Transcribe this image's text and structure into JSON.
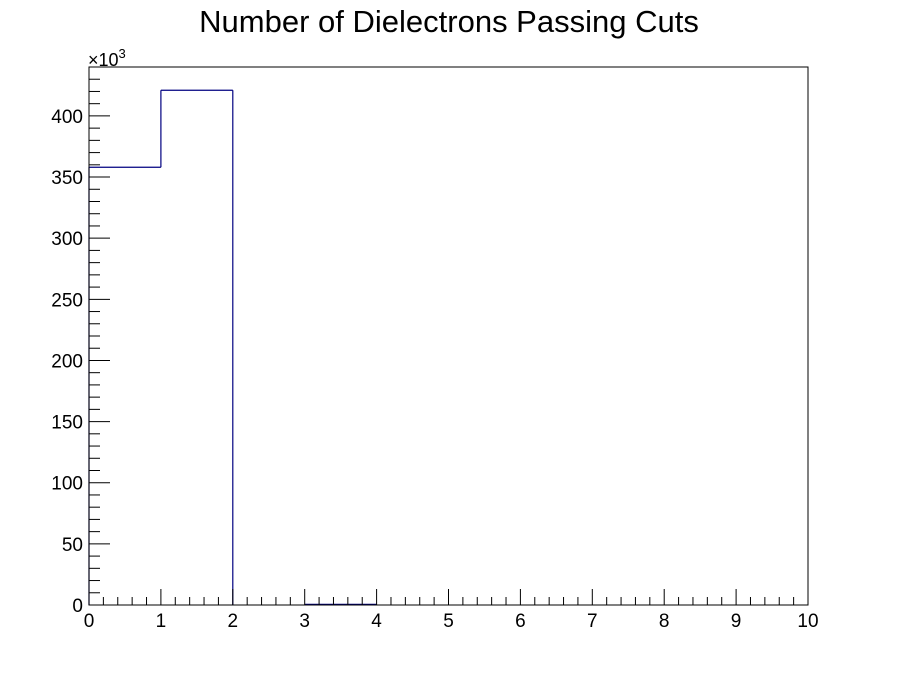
{
  "chart_data": {
    "type": "bar",
    "style": "step-histogram",
    "title": "Number of Dielectrons Passing Cuts",
    "xlabel": "",
    "ylabel": "",
    "y_exponent_label": "×10",
    "y_exponent_power": "3",
    "y_multiplier": 1000,
    "xlim": [
      0,
      10
    ],
    "ylim": [
      0,
      440
    ],
    "x_ticks": [
      0,
      1,
      2,
      3,
      4,
      5,
      6,
      7,
      8,
      9,
      10
    ],
    "x_tick_labels": [
      "0",
      "1",
      "2",
      "3",
      "4",
      "5",
      "6",
      "7",
      "8",
      "9",
      "10"
    ],
    "y_ticks": [
      0,
      50,
      100,
      150,
      200,
      250,
      300,
      350,
      400
    ],
    "y_tick_labels": [
      "0",
      "50",
      "100",
      "150",
      "200",
      "250",
      "300",
      "350",
      "400"
    ],
    "bin_edges": [
      0,
      1,
      2,
      3,
      4,
      5,
      6,
      7,
      8,
      9,
      10
    ],
    "values": [
      358,
      421,
      0,
      0.5,
      0,
      0,
      0,
      0,
      0,
      0
    ],
    "line_color": "#000080",
    "grid": false,
    "legend": "none"
  }
}
